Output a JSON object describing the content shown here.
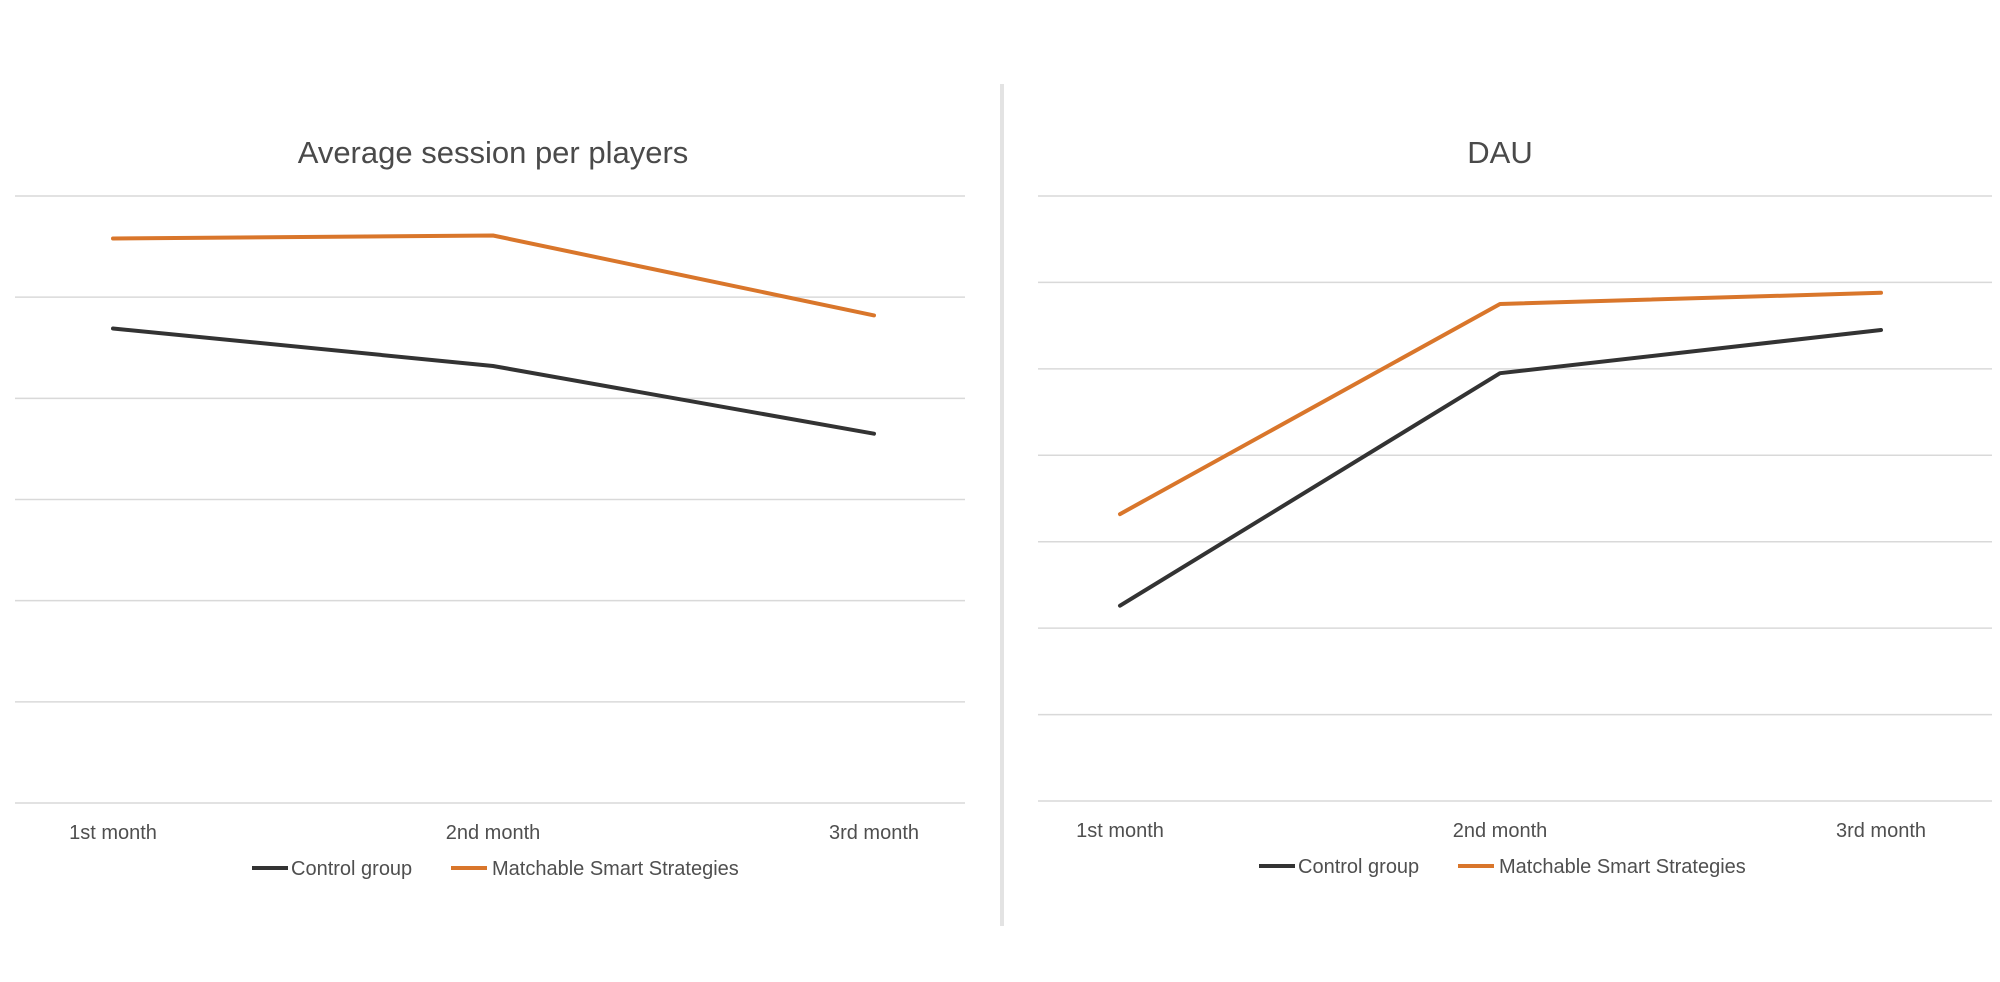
{
  "chart_data": [
    {
      "type": "line",
      "title": "Average session per players",
      "categories": [
        "1st month",
        "2nd month",
        "3rd month"
      ],
      "ylim": [
        0,
        6
      ],
      "grid": true,
      "legend_position": "bottom",
      "series": [
        {
          "name": "Control group",
          "color": "#333333",
          "values": [
            4.69,
            4.32,
            3.65
          ]
        },
        {
          "name": "Matchable Smart Strategies",
          "color": "#d9762b",
          "values": [
            5.58,
            5.61,
            4.82
          ]
        }
      ]
    },
    {
      "type": "line",
      "title": "DAU",
      "categories": [
        "1st month",
        "2nd month",
        "3rd month"
      ],
      "ylim": [
        0,
        7
      ],
      "grid": true,
      "legend_position": "bottom",
      "series": [
        {
          "name": "Control group",
          "color": "#333333",
          "values": [
            2.26,
            4.95,
            5.45
          ]
        },
        {
          "name": "Matchable Smart Strategies",
          "color": "#d9762b",
          "values": [
            3.32,
            5.75,
            5.88
          ]
        }
      ]
    }
  ]
}
